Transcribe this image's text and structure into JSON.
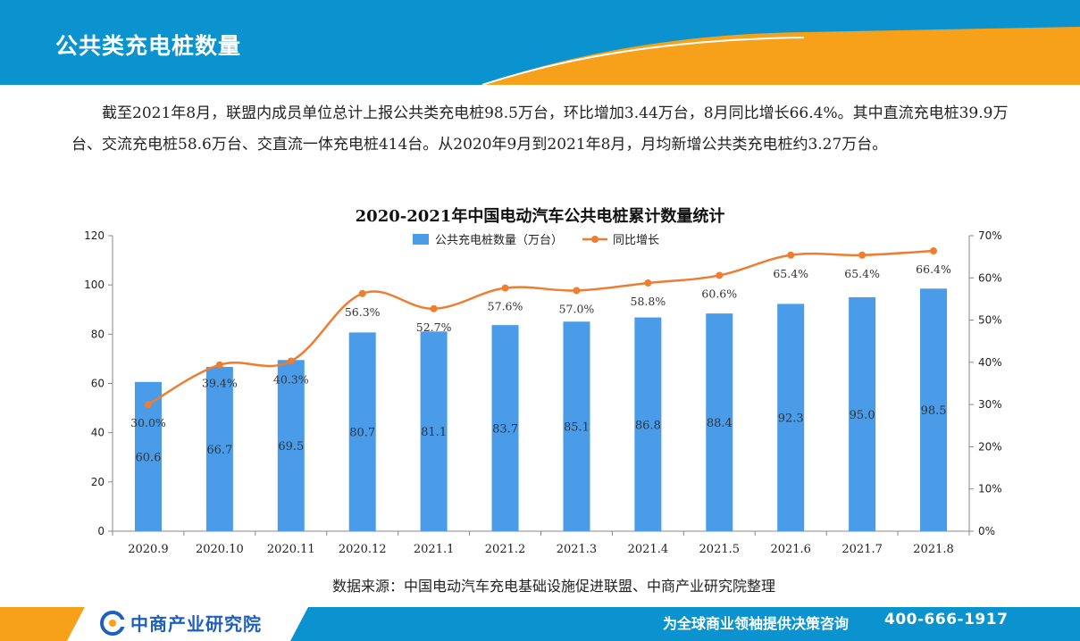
{
  "header": {
    "title": "公共类充电桩数量"
  },
  "intro": {
    "paragraph": "截至2021年8月，联盟内成员单位总计上报公共类充电桩98.5万台，环比增加3.44万台，8月同比增长66.4%。其中直流充电桩39.9万台、交流充电桩58.6万台、交直流一体充电桩414台。从2020年9月到2021年8月，月均新增公共类充电桩约3.27万台。"
  },
  "chart_data": {
    "type": "bar",
    "title": "2020-2021年中国电动汽车公共电桩累计数量统计",
    "categories": [
      "2020.9",
      "2020.10",
      "2020.11",
      "2020.12",
      "2021.1",
      "2021.2",
      "2021.3",
      "2021.4",
      "2021.5",
      "2021.6",
      "2021.7",
      "2021.8"
    ],
    "series": [
      {
        "name": "公共充电桩数量（万台）",
        "type": "bar",
        "axis": "left",
        "values": [
          60.6,
          66.7,
          69.5,
          80.7,
          81.1,
          83.7,
          85.1,
          86.8,
          88.4,
          92.3,
          95.0,
          98.5
        ],
        "labels": [
          "60.6",
          "66.7",
          "69.5",
          "80.7",
          "81.1",
          "83.7",
          "85.1",
          "86.8",
          "88.4",
          "92.3",
          "95.0",
          "98.5"
        ],
        "color": "#4a9be8"
      },
      {
        "name": "同比增长",
        "type": "line",
        "axis": "right",
        "values": [
          30.0,
          39.4,
          40.3,
          56.3,
          52.7,
          57.6,
          57.0,
          58.8,
          60.6,
          65.4,
          65.4,
          66.4
        ],
        "labels": [
          "30.0%",
          "39.4%",
          "40.3%",
          "56.3%",
          "52.7%",
          "57.6%",
          "57.0%",
          "58.8%",
          "60.6%",
          "65.4%",
          "65.4%",
          "66.4%"
        ],
        "color": "#ed7d31"
      }
    ],
    "ylim_left": [
      0,
      120
    ],
    "yticks_left": [
      "0",
      "20",
      "40",
      "60",
      "80",
      "100",
      "120"
    ],
    "ylim_right": [
      0,
      70
    ],
    "yticks_right": [
      "0%",
      "10%",
      "20%",
      "30%",
      "40%",
      "50%",
      "60%",
      "70%"
    ],
    "legend_position": "top-center",
    "grid": false
  },
  "source": "数据来源：中国电动汽车充电基础设施促进联盟、中商产业研究院整理",
  "footer": {
    "brand": "中商产业研究院",
    "slogan": "为全球商业领袖提供决策咨询",
    "phone": "400-666-1917"
  },
  "colors": {
    "header_blue": "#0a93cf",
    "accent_orange": "#f7a11a",
    "bar": "#4a9be8",
    "line": "#ed7d31",
    "brand_blue": "#1f5fbf"
  }
}
